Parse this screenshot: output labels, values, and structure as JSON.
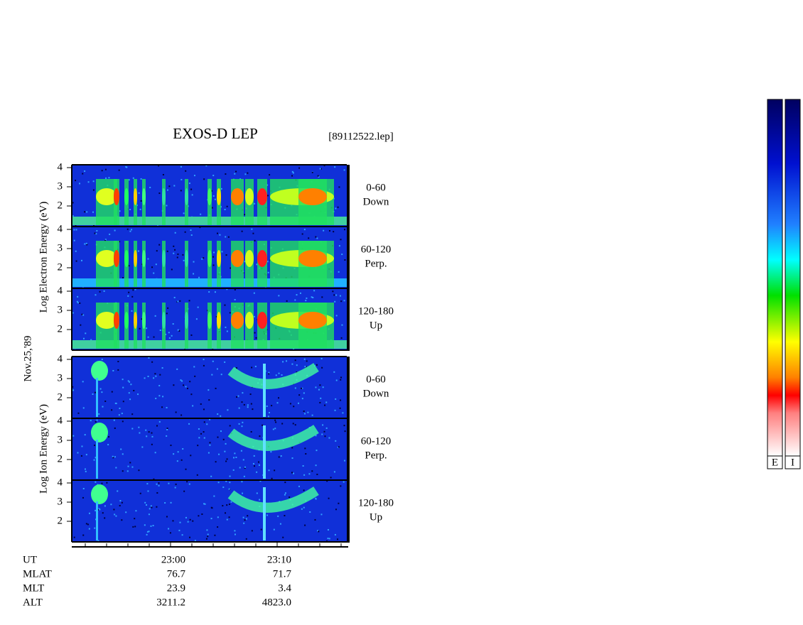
{
  "title": "EXOS-D LEP",
  "file": "[89112522.lep]",
  "date": "Nov.25,'89",
  "yticks": [
    2,
    3,
    4
  ],
  "electron": {
    "ylabel": "Log  Electron  Energy (eV)",
    "panels": [
      {
        "range": "0-60",
        "direction": "Down"
      },
      {
        "range": "60-120",
        "direction": "Perp."
      },
      {
        "range": "120-180",
        "direction": "Up"
      }
    ]
  },
  "ion": {
    "ylabel": "Log  Ion  Energy (eV)",
    "panels": [
      {
        "range": "0-60",
        "direction": "Down"
      },
      {
        "range": "60-120",
        "direction": "Perp."
      },
      {
        "range": "120-180",
        "direction": "Up"
      }
    ]
  },
  "footer": {
    "labels": [
      "UT",
      "MLAT",
      "MLT",
      "ALT"
    ],
    "columns": [
      [
        "23:00",
        "76.7",
        "23.9",
        "3211.2"
      ],
      [
        "23:10",
        "71.7",
        "3.4",
        "4823.0"
      ]
    ]
  },
  "colorbars": [
    "E",
    "I"
  ]
}
